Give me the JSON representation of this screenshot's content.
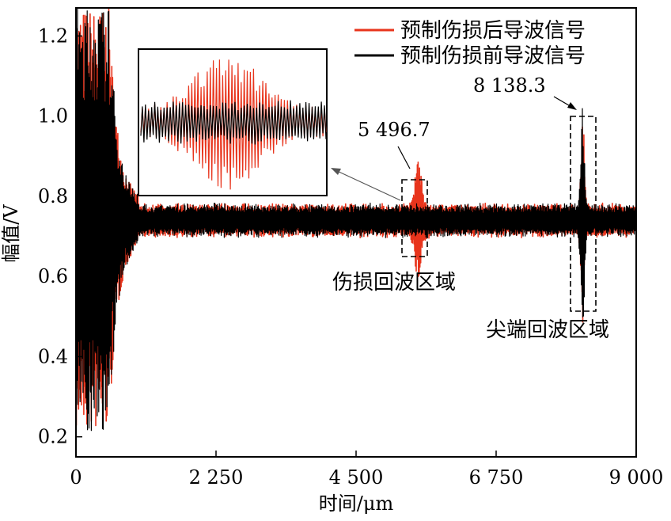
{
  "chart_data": {
    "type": "line",
    "xlabel": "时间/μm",
    "ylabel": "幅值/V",
    "xlim": [
      0,
      9000
    ],
    "ylim": [
      0.15,
      1.27
    ],
    "x_ticks": [
      {
        "value": 0,
        "label": "0"
      },
      {
        "value": 2250,
        "label": "2 250"
      },
      {
        "value": 4500,
        "label": "4 500"
      },
      {
        "value": 6750,
        "label": "6 750"
      },
      {
        "value": 9000,
        "label": "9 000"
      }
    ],
    "y_ticks": [
      {
        "value": 0.2,
        "label": "0.2"
      },
      {
        "value": 0.4,
        "label": "0.4"
      },
      {
        "value": 0.6,
        "label": "0.6"
      },
      {
        "value": 0.8,
        "label": "0.8"
      },
      {
        "value": 1.0,
        "label": "1.0"
      },
      {
        "value": 1.2,
        "label": "1.2"
      }
    ],
    "baseline": 0.74,
    "series": [
      {
        "name": "预制伤损后导波信号",
        "color": "#e8341c"
      },
      {
        "name": "预制伤损前导波信号",
        "color": "#000000"
      }
    ],
    "legend_position": "top-right",
    "annotations": [
      {
        "text": "5 496.7",
        "x": 5496.7
      },
      {
        "text": "8 138.3",
        "x": 8138.3
      }
    ],
    "regions": [
      {
        "label": "伤损回波区域",
        "x_range": [
          5300,
          5600
        ],
        "y_range": [
          0.625,
          0.85
        ]
      },
      {
        "label": "尖端回波区域",
        "x_range": [
          7980,
          8250
        ],
        "y_range": [
          0.5,
          1.03
        ]
      }
    ]
  }
}
